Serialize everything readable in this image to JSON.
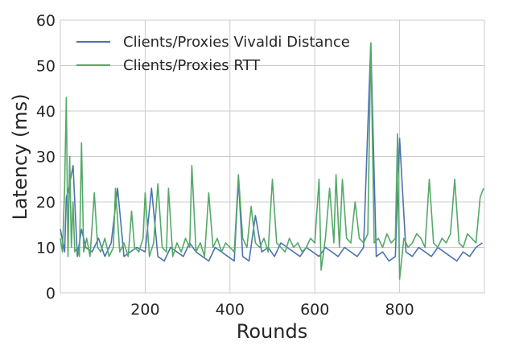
{
  "chart_data": {
    "type": "line",
    "xlabel": "Rounds",
    "ylabel": "Latency (ms)",
    "xlim": [
      0,
      1000
    ],
    "ylim": [
      0,
      60
    ],
    "x_ticks": [
      200,
      400,
      600,
      800
    ],
    "y_ticks": [
      0,
      10,
      20,
      30,
      40,
      50,
      60
    ],
    "grid": true,
    "legend_position": "top-left",
    "series": [
      {
        "name": "Clients/Proxies Vivaldi Distance",
        "color": "#4c72b0",
        "x": [
          0,
          10,
          14,
          20,
          30,
          40,
          50,
          60,
          75,
          90,
          105,
          120,
          135,
          150,
          165,
          180,
          200,
          215,
          230,
          245,
          260,
          275,
          290,
          305,
          320,
          335,
          350,
          365,
          380,
          395,
          410,
          420,
          430,
          445,
          460,
          475,
          490,
          505,
          520,
          535,
          550,
          565,
          580,
          595,
          610,
          625,
          640,
          655,
          670,
          685,
          700,
          715,
          732,
          745,
          760,
          775,
          790,
          800,
          815,
          830,
          845,
          860,
          875,
          890,
          905,
          920,
          935,
          950,
          965,
          980,
          995
        ],
        "y": [
          14,
          9,
          21,
          23,
          28,
          8,
          14,
          10,
          9,
          12,
          8,
          11,
          23,
          8,
          9,
          10,
          9,
          23,
          8,
          7,
          10,
          9,
          8,
          11,
          9,
          8,
          7,
          10,
          9,
          8,
          7,
          25,
          8,
          7,
          17,
          9,
          10,
          8,
          11,
          10,
          9,
          8,
          10,
          9,
          8,
          10,
          9,
          8,
          10,
          9,
          8,
          10,
          55,
          8,
          9,
          7,
          8,
          34,
          9,
          8,
          10,
          9,
          8,
          10,
          9,
          8,
          7,
          9,
          8,
          10,
          11
        ]
      },
      {
        "name": "Clients/Proxies RTT",
        "color": "#55a868",
        "x": [
          0,
          5,
          10,
          14,
          18,
          22,
          26,
          30,
          34,
          40,
          45,
          50,
          55,
          62,
          70,
          80,
          88,
          95,
          105,
          115,
          125,
          130,
          140,
          150,
          160,
          168,
          175,
          185,
          195,
          200,
          210,
          220,
          230,
          240,
          250,
          255,
          265,
          275,
          285,
          295,
          305,
          310,
          320,
          330,
          340,
          350,
          360,
          370,
          380,
          390,
          400,
          410,
          420,
          430,
          440,
          450,
          460,
          470,
          480,
          490,
          500,
          510,
          520,
          530,
          540,
          550,
          560,
          570,
          580,
          590,
          600,
          610,
          615,
          625,
          635,
          645,
          650,
          658,
          665,
          675,
          685,
          695,
          705,
          715,
          725,
          732,
          740,
          750,
          760,
          770,
          780,
          790,
          795,
          800,
          810,
          820,
          830,
          840,
          850,
          860,
          870,
          880,
          890,
          900,
          910,
          920,
          930,
          940,
          950,
          960,
          970,
          980,
          990,
          998
        ],
        "y": [
          12,
          9,
          23,
          43,
          8,
          30,
          10,
          20,
          9,
          10,
          8,
          33,
          9,
          12,
          8,
          22,
          10,
          9,
          12,
          8,
          10,
          23,
          9,
          11,
          8,
          18,
          10,
          9,
          12,
          22,
          8,
          11,
          24,
          10,
          9,
          23,
          8,
          11,
          9,
          12,
          10,
          28,
          9,
          11,
          8,
          22,
          10,
          12,
          9,
          11,
          10,
          9,
          26,
          12,
          10,
          19,
          11,
          10,
          12,
          9,
          25,
          11,
          10,
          9,
          12,
          10,
          11,
          9,
          10,
          12,
          11,
          25,
          5,
          12,
          23,
          11,
          26,
          10,
          25,
          12,
          11,
          20,
          12,
          11,
          13,
          55,
          11,
          12,
          10,
          13,
          11,
          12,
          35,
          3,
          12,
          10,
          11,
          13,
          12,
          10,
          25,
          11,
          10,
          12,
          11,
          13,
          25,
          11,
          10,
          13,
          12,
          11,
          21,
          23
        ]
      }
    ]
  }
}
